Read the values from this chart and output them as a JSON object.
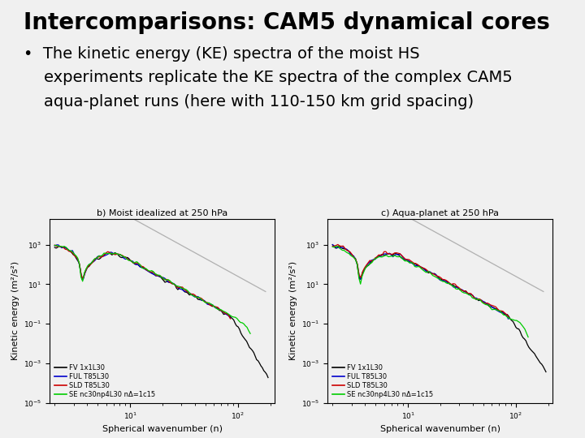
{
  "title": "Intercomparisons: CAM5 dynamical cores",
  "bullet_line1": "•  The kinetic energy (KE) spectra of the moist HS",
  "bullet_line2": "    experiments replicate the KE spectra of the complex CAM5",
  "bullet_line3": "    aqua-planet runs (here with 110-150 km grid spacing)",
  "plot1_title": "b) Moist idealized at 250 hPa",
  "plot2_title": "c) Aqua-planet at 250 hPa",
  "xlabel": "Spherical wavenumber (n)",
  "ylabel": "Kinetic energy (m²/s²)",
  "xlim": [
    1.8,
    220
  ],
  "ylim": [
    1e-05,
    20000.0
  ],
  "legend_labels": [
    "FV 1x1L30",
    "FUL T85L30",
    "SLD T85L30",
    "SE nc30np4L30 nΔ=1c15"
  ],
  "legend_colors": [
    "#000000",
    "#0000cc",
    "#cc0000",
    "#00cc00"
  ],
  "background_color": "#f0f0f0",
  "title_fontsize": 20,
  "bullet_fontsize": 14,
  "axes_fontsize": 8,
  "title_color": "#000000"
}
